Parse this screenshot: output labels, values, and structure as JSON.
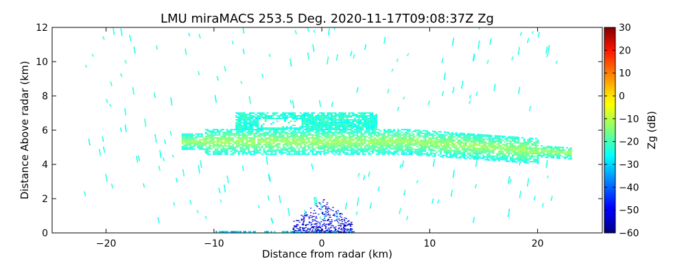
{
  "chart_data": {
    "type": "heatmap",
    "title": "LMU miraMACS 253.5 Deg. 2020-11-17T09:08:37Z  Zg",
    "xlabel": "Distance from radar (km)",
    "ylabel": "Distance Above radar  (km)",
    "xlim": [
      -25,
      26
    ],
    "ylim": [
      0,
      12
    ],
    "xticks": [
      -20,
      -10,
      0,
      10,
      20
    ],
    "xtick_labels": [
      "−20",
      "−10",
      "0",
      "10",
      "20"
    ],
    "yticks": [
      0,
      2,
      4,
      6,
      8,
      10,
      12
    ],
    "ytick_labels": [
      "0",
      "2",
      "4",
      "6",
      "8",
      "10",
      "12"
    ],
    "colorbar": {
      "label": "Zg (dB)",
      "colormap": "jet",
      "range": [
        -60,
        30
      ],
      "ticks": [
        30,
        20,
        10,
        0,
        -10,
        -20,
        -30,
        -40,
        -50,
        -60
      ],
      "tick_labels": [
        "30",
        "20",
        "10",
        "0",
        "−10",
        "−20",
        "−30",
        "−40",
        "−50",
        "−60"
      ]
    },
    "cloud_layer": {
      "description_values_dB": {
        "core": -12,
        "edge": -25
      },
      "x_range_km": [
        -13,
        23
      ],
      "height_range_km": [
        4.3,
        7.0
      ]
    },
    "features": [
      {
        "name": "upper cloud deck",
        "x": [
          -8,
          5
        ],
        "z": [
          6.0,
          7.0
        ],
        "value": -22
      },
      {
        "name": "main cloud band",
        "x": [
          -13,
          23
        ],
        "z": [
          4.3,
          6.1
        ],
        "value": -14
      },
      {
        "name": "near-radar clutter",
        "x": [
          -3,
          3
        ],
        "z": [
          0,
          2.0
        ],
        "value": -52
      },
      {
        "name": "scattered echoes",
        "x": [
          -22,
          22
        ],
        "z": [
          0,
          12
        ],
        "value": -24
      }
    ]
  }
}
